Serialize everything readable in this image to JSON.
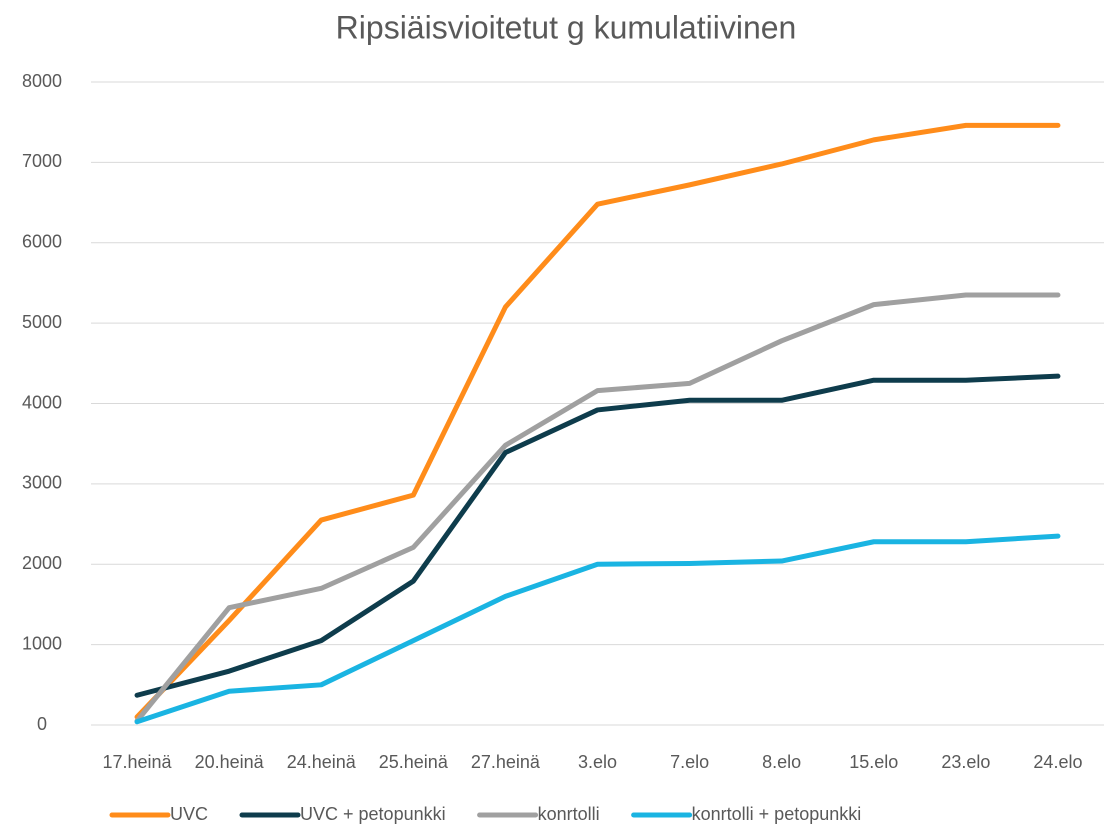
{
  "chart_data": {
    "type": "line",
    "title": "Ripsiäisvioitetut g kumulatiivinen",
    "categories": [
      "17.heinä",
      "20.heinä",
      "24.heinä",
      "25.heinä",
      "27.heinä",
      "3.elo",
      "7.elo",
      "8.elo",
      "15.elo",
      "23.elo",
      "24.elo"
    ],
    "series": [
      {
        "name": "UVC",
        "color": "#ff8c1a",
        "values": [
          100,
          1300,
          2550,
          2860,
          5200,
          6480,
          6720,
          6980,
          7280,
          7460,
          7460
        ]
      },
      {
        "name": "UVC + petopunkki",
        "color": "#0e3c4c",
        "values": [
          370,
          670,
          1050,
          1790,
          3390,
          3920,
          4040,
          4040,
          4290,
          4290,
          4340
        ]
      },
      {
        "name": "konrtolli",
        "color": "#a0a0a0",
        "values": [
          50,
          1460,
          1700,
          2210,
          3480,
          4160,
          4250,
          4780,
          5230,
          5350,
          5350
        ]
      },
      {
        "name": "konrtolli + petopunkki",
        "color": "#1ab4e2",
        "values": [
          40,
          420,
          500,
          1050,
          1600,
          2000,
          2010,
          2040,
          2280,
          2280,
          2350
        ]
      }
    ],
    "ylim": [
      0,
      8000
    ],
    "yticks": [
      0,
      1000,
      2000,
      3000,
      4000,
      5000,
      6000,
      7000,
      8000
    ],
    "grid": true,
    "legend": "bottom"
  }
}
